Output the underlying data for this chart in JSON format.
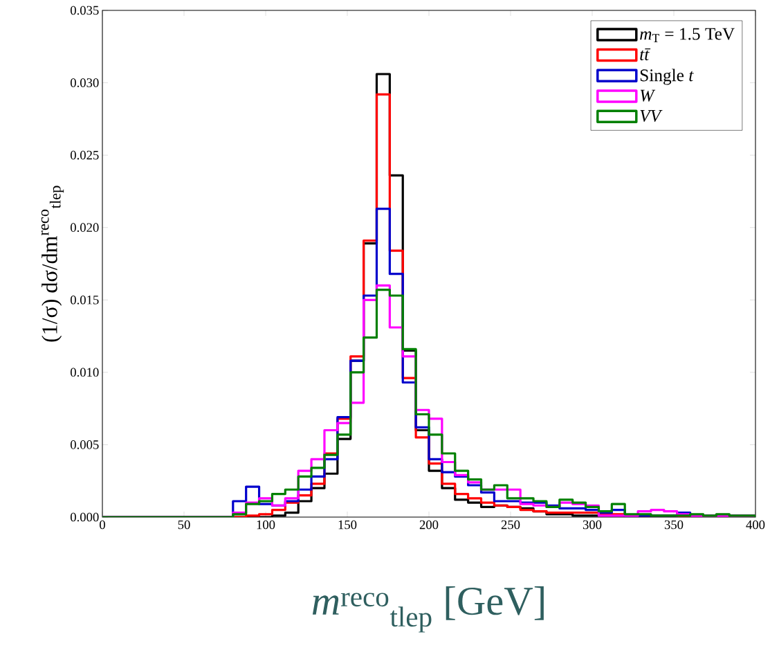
{
  "chart_data": {
    "type": "histogram",
    "xlabel": "*m*$^{reco}$$_{tlep}$ [GeV]",
    "ylabel": "(1/σ) dσ/dm$^{reco}$$_{tlep}$",
    "bins": [
      0,
      8,
      16,
      24,
      32,
      40,
      48,
      56,
      64,
      72,
      80,
      88,
      96,
      104,
      112,
      120,
      128,
      136,
      144,
      152,
      160,
      168,
      176,
      184,
      192,
      200,
      208,
      216,
      224,
      232,
      240,
      248,
      256,
      264,
      272,
      280,
      288,
      296,
      304,
      312,
      320,
      328,
      336,
      344,
      352,
      360,
      368,
      376,
      384,
      392,
      400
    ],
    "series": [
      {
        "name": "*m*$_{T}$ = 1.5 TeV",
        "color": "#000000",
        "values": [
          0,
          0,
          0,
          0,
          0,
          0,
          0,
          0,
          0,
          0,
          0,
          0,
          0,
          0.0001,
          0.0003,
          0.0011,
          0.002,
          0.003,
          0.0054,
          0.0108,
          0.0189,
          0.0306,
          0.0236,
          0.0115,
          0.006,
          0.0032,
          0.002,
          0.0012,
          0.001,
          0.0007,
          0.0008,
          0.0007,
          0.0006,
          0.0004,
          0.0002,
          0.0002,
          0.0001,
          0.0001,
          0.0001,
          0.0001,
          0,
          0,
          0,
          0,
          0,
          0,
          0,
          0,
          0,
          0
        ]
      },
      {
        "name": "*tt̄*",
        "color": "#ff0000",
        "values": [
          0,
          0,
          0,
          0,
          0,
          0,
          0,
          0,
          0,
          0,
          0,
          0.0001,
          0.0002,
          0.0005,
          0.001,
          0.0015,
          0.0023,
          0.0044,
          0.0068,
          0.0111,
          0.0191,
          0.0292,
          0.0184,
          0.0096,
          0.0055,
          0.0037,
          0.0023,
          0.0016,
          0.0013,
          0.001,
          0.0008,
          0.0007,
          0.0005,
          0.0004,
          0.0003,
          0.0003,
          0.0003,
          0.0003,
          0.0002,
          0.0002,
          0.0001,
          0.0001,
          0.0001,
          0.0001,
          0,
          0,
          0,
          0,
          0,
          0
        ]
      },
      {
        "name": "Single *t*",
        "color": "#0000cc",
        "values": [
          0,
          0,
          0,
          0,
          0,
          0,
          0,
          0,
          0,
          0,
          0.0011,
          0.0021,
          0.0009,
          0.0008,
          0.0011,
          0.0019,
          0.0028,
          0.004,
          0.0069,
          0.0108,
          0.0153,
          0.0213,
          0.0168,
          0.0093,
          0.0062,
          0.004,
          0.0031,
          0.0028,
          0.0022,
          0.0017,
          0.0011,
          0.0011,
          0.001,
          0.001,
          0.0008,
          0.0006,
          0.0006,
          0.0005,
          0.0003,
          0.0005,
          0.0001,
          0.0001,
          0.0001,
          0.0001,
          0.0003,
          0.0001,
          0.0001,
          0.0001,
          0.0001,
          0.0001
        ]
      },
      {
        "name": "*W*",
        "color": "#ff00ff",
        "values": [
          0,
          0,
          0,
          0,
          0,
          0,
          0,
          0,
          0,
          0,
          0.0003,
          0.001,
          0.0013,
          0.0008,
          0.0013,
          0.0032,
          0.004,
          0.006,
          0.0065,
          0.0079,
          0.015,
          0.016,
          0.0131,
          0.0111,
          0.0074,
          0.0068,
          0.0038,
          0.0029,
          0.0024,
          0.0019,
          0.0019,
          0.0019,
          0.0009,
          0.0008,
          0.0007,
          0.001,
          0.0009,
          0.0008,
          0.0001,
          0.0001,
          0.0001,
          0.0004,
          0.0005,
          0.0004,
          0.0002,
          0.0001,
          0.0001,
          0.0001,
          0.0001,
          0.0001
        ]
      },
      {
        "name": "*VV*",
        "color": "#008000",
        "values": [
          0,
          0,
          0,
          0,
          0,
          0,
          0,
          0,
          0,
          0,
          0.0002,
          0.0009,
          0.0011,
          0.0016,
          0.0019,
          0.0028,
          0.0034,
          0.0043,
          0.0057,
          0.01,
          0.0124,
          0.0157,
          0.0153,
          0.0116,
          0.0071,
          0.0057,
          0.0044,
          0.0032,
          0.0026,
          0.0019,
          0.0022,
          0.0013,
          0.0013,
          0.0011,
          0.0007,
          0.0012,
          0.001,
          0.0007,
          0.0004,
          0.0009,
          0.0002,
          0.0002,
          0.0001,
          0.0001,
          0.0001,
          0.0002,
          0.0001,
          0.0002,
          0.0001,
          0.0001
        ]
      }
    ],
    "xlim": [
      0,
      400
    ],
    "xticks": [
      0,
      50,
      100,
      150,
      200,
      250,
      300,
      350,
      400
    ],
    "ylim": [
      0,
      0.035
    ],
    "yticks": [
      {
        "value": 0,
        "label": "0.000"
      },
      {
        "value": 0.005,
        "label": "0.005"
      },
      {
        "value": 0.01,
        "label": "0.010"
      },
      {
        "value": 0.015,
        "label": "0.015"
      },
      {
        "value": 0.02,
        "label": "0.020"
      },
      {
        "value": 0.025,
        "label": "0.025"
      },
      {
        "value": 0.03,
        "label": "0.030"
      },
      {
        "value": 0.035,
        "label": "0.035"
      }
    ],
    "legend": "top right"
  }
}
